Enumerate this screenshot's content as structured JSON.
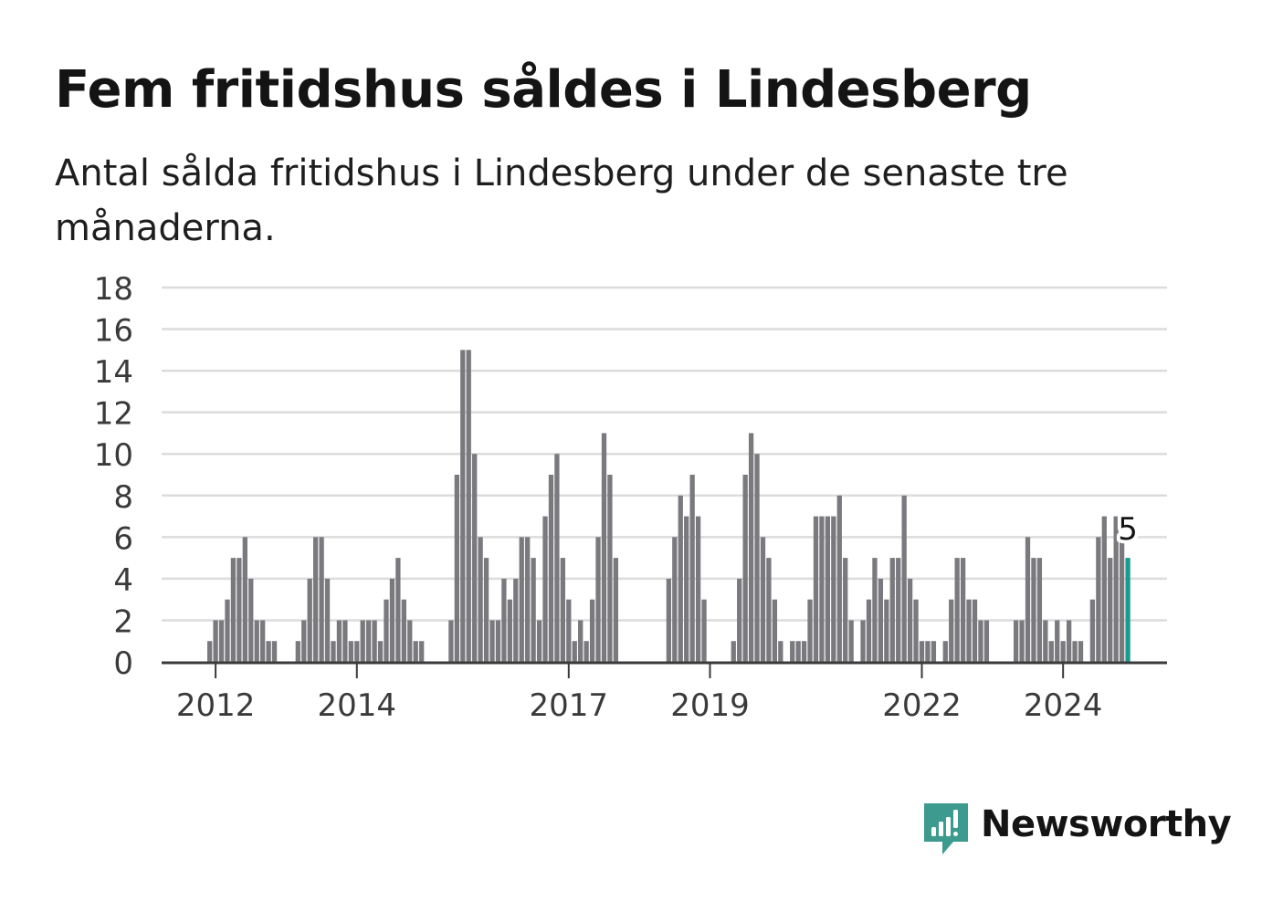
{
  "title": "Fem fritidshus såldes i Lindesberg",
  "subtitle": "Antal sålda fritidshus i Lindesberg under de senaste tre månaderna.",
  "brand": {
    "name": "Newsworthy",
    "color": "#3c9a8e",
    "icon": "newsworthy-logo-icon"
  },
  "colors": {
    "bar": "#7a797e",
    "highlight": "#1a9b91",
    "grid": "#dcdcdc",
    "axis": "#3a3a3a",
    "text": "#3a3a3a"
  },
  "chart_data": {
    "type": "bar",
    "title": "Fem fritidshus såldes i Lindesberg",
    "xlabel": "",
    "ylabel": "",
    "ylim": [
      0,
      18
    ],
    "yticks": [
      0,
      2,
      4,
      6,
      8,
      10,
      12,
      14,
      16,
      18
    ],
    "xticks": [
      "2012",
      "2014",
      "2017",
      "2019",
      "2022",
      "2024"
    ],
    "grid": true,
    "frequency": "monthly, rolling three-month totals",
    "start": "2011-12",
    "values": [
      1,
      2,
      2,
      3,
      5,
      5,
      6,
      4,
      2,
      2,
      1,
      1,
      null,
      null,
      null,
      1,
      2,
      4,
      6,
      6,
      4,
      1,
      2,
      2,
      1,
      1,
      2,
      2,
      2,
      1,
      3,
      4,
      5,
      3,
      2,
      1,
      1,
      null,
      null,
      null,
      null,
      2,
      9,
      15,
      15,
      10,
      6,
      5,
      2,
      2,
      4,
      3,
      4,
      6,
      6,
      5,
      2,
      7,
      9,
      10,
      5,
      3,
      1,
      2,
      1,
      3,
      6,
      11,
      9,
      5,
      null,
      null,
      null,
      null,
      null,
      null,
      null,
      null,
      4,
      6,
      8,
      7,
      9,
      7,
      3,
      null,
      null,
      null,
      null,
      1,
      4,
      9,
      11,
      10,
      6,
      5,
      3,
      1,
      null,
      1,
      1,
      1,
      3,
      7,
      7,
      7,
      7,
      8,
      5,
      2,
      null,
      2,
      3,
      5,
      4,
      3,
      5,
      5,
      8,
      4,
      3,
      1,
      1,
      1,
      null,
      1,
      3,
      5,
      5,
      3,
      3,
      2,
      2,
      null,
      null,
      null,
      null,
      2,
      2,
      6,
      5,
      5,
      2,
      1,
      2,
      1,
      2,
      1,
      1,
      null,
      3,
      6,
      7,
      5,
      7,
      6,
      5
    ],
    "highlight_value": 5,
    "highlight_label": "5"
  }
}
